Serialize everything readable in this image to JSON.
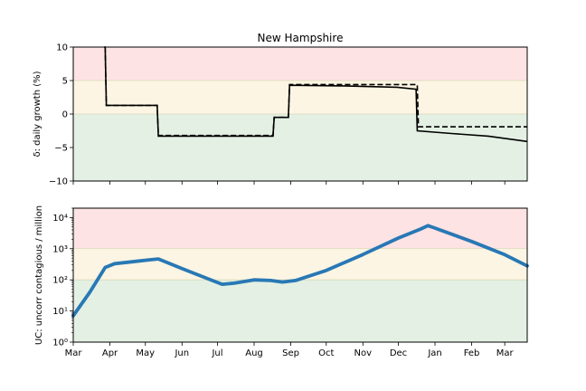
{
  "chart_data": [
    {
      "type": "line",
      "title": "New Hampshire",
      "ylabel": "δ: daily growth (%)",
      "ylim": [
        -10,
        10
      ],
      "yticks": [
        "−10",
        "−5",
        "0",
        "5",
        "10"
      ],
      "x_range": [
        "2020-03-01",
        "2021-03-20"
      ],
      "zones": [
        {
          "from": 5,
          "to": 10,
          "color": "#fde3e3"
        },
        {
          "from": 0,
          "to": 5,
          "color": "#fdf5e3"
        },
        {
          "from": -10,
          "to": 0,
          "color": "#e3f0e3"
        }
      ],
      "series": [
        {
          "style": "dashed",
          "color": "#000000",
          "x": [
            "2020-03-28",
            "2020-03-29",
            "2020-05-11",
            "2020-05-12",
            "2020-08-17",
            "2020-08-18",
            "2020-08-30",
            "2020-08-31",
            "2020-12-17",
            "2020-12-18",
            "2021-03-20"
          ],
          "y": [
            10,
            1.3,
            1.3,
            -3.2,
            -3.2,
            -0.5,
            -0.5,
            4.4,
            4.4,
            -1.9,
            -1.9
          ]
        },
        {
          "style": "solid",
          "color": "#000000",
          "x": [
            "2020-03-27",
            "2020-03-28",
            "2020-03-29",
            "2020-05-11",
            "2020-05-12",
            "2020-08-17",
            "2020-08-18",
            "2020-08-30",
            "2020-08-31",
            "2020-10-15",
            "2020-11-30",
            "2020-12-16",
            "2020-12-17",
            "2021-01-15",
            "2021-02-15",
            "2021-03-20"
          ],
          "y": [
            10,
            10,
            1.3,
            1.3,
            -3.3,
            -3.3,
            -0.5,
            -0.5,
            4.3,
            4.2,
            4.0,
            3.7,
            -2.5,
            -2.9,
            -3.3,
            -4.1
          ]
        }
      ]
    },
    {
      "type": "line",
      "ylabel": "UC: uncorr contagious / million",
      "yscale": "log",
      "ylim": [
        1,
        20000
      ],
      "yticks": [
        "10⁰",
        "10¹",
        "10²",
        "10³",
        "10⁴"
      ],
      "xticks": [
        "Mar",
        "Apr",
        "May",
        "Jun",
        "Jul",
        "Aug",
        "Sep",
        "Oct",
        "Nov",
        "Dec",
        "Jan",
        "Feb",
        "Mar"
      ],
      "zones": [
        {
          "from": 1000,
          "to": 20000,
          "color": "#fde3e3"
        },
        {
          "from": 100,
          "to": 1000,
          "color": "#fdf5e3"
        },
        {
          "from": 1,
          "to": 100,
          "color": "#e3f0e3"
        }
      ],
      "series": [
        {
          "style": "solid",
          "color": "#2878b5",
          "x": [
            "2020-03-01",
            "2020-03-15",
            "2020-03-28",
            "2020-04-05",
            "2020-04-20",
            "2020-05-05",
            "2020-05-12",
            "2020-06-01",
            "2020-06-20",
            "2020-07-05",
            "2020-07-15",
            "2020-08-01",
            "2020-08-15",
            "2020-08-25",
            "2020-09-05",
            "2020-10-01",
            "2020-11-01",
            "2020-12-01",
            "2020-12-20",
            "2020-12-26",
            "2021-01-01",
            "2021-02-01",
            "2021-03-01",
            "2021-03-20"
          ],
          "y": [
            7,
            40,
            250,
            330,
            380,
            440,
            470,
            230,
            120,
            72,
            78,
            100,
            95,
            85,
            95,
            200,
            650,
            2200,
            4300,
            5500,
            4600,
            1700,
            640,
            280
          ]
        }
      ]
    }
  ]
}
